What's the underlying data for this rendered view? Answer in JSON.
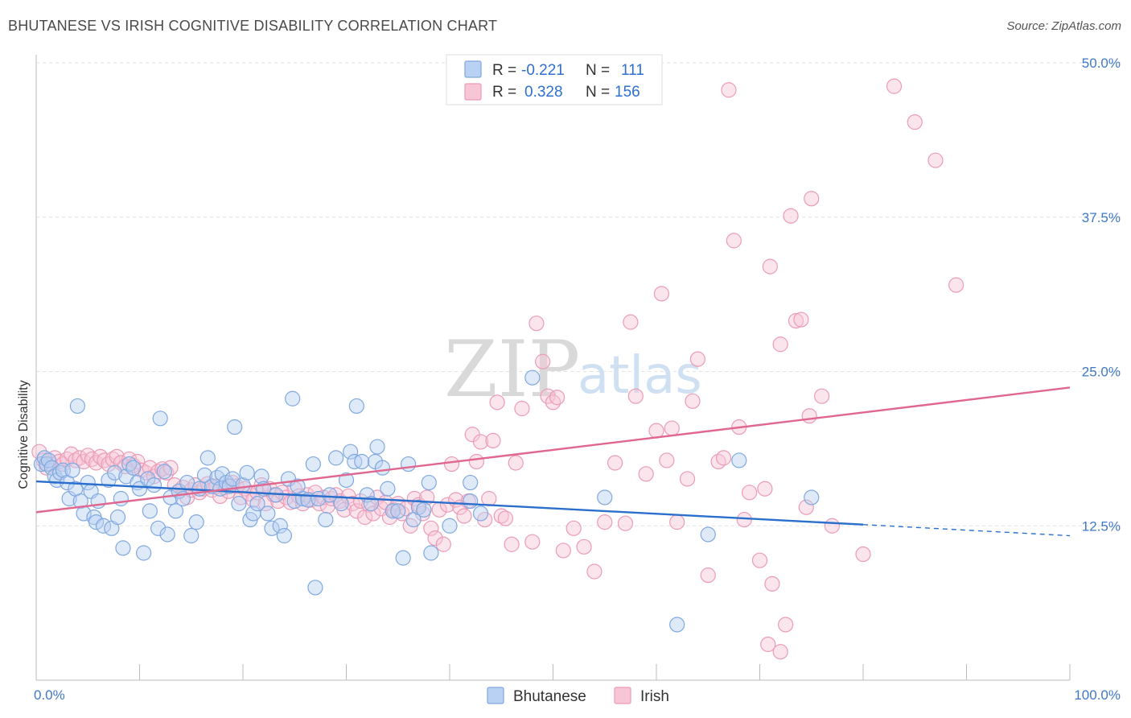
{
  "title": "BHUTANESE VS IRISH COGNITIVE DISABILITY CORRELATION CHART",
  "source": "Source: ZipAtlas.com",
  "watermark": {
    "zip": "ZIP",
    "atlas": "atlas"
  },
  "colors": {
    "bhutanese": "#7fa8e0",
    "bhutanese_fill": "#b9d1f2",
    "bhutanese_line": "#2a6fcc",
    "irish": "#eb9bb5",
    "irish_fill": "#f7c6d6",
    "irish_line": "#e0678f"
  },
  "legend": {
    "rows": [
      {
        "r_label": "R =",
        "r_value": "-0.221",
        "n_label": "N =",
        "n_value": "111"
      },
      {
        "r_label": "R =",
        "r_value": "0.328",
        "n_label": "N =",
        "n_value": "156"
      }
    ]
  },
  "bottom_legend": [
    "Bhutanese",
    "Irish"
  ],
  "chart_data": {
    "type": "scatter",
    "ylabel": "Cognitive Disability",
    "xlim": [
      0,
      100
    ],
    "ylim": [
      0,
      50
    ],
    "x_tick_labels": [
      "0.0%",
      "100.0%"
    ],
    "y_ticks": [
      12.5,
      25.0,
      37.5,
      50.0
    ],
    "y_tick_labels": [
      "12.5%",
      "25.0%",
      "37.5%",
      "50.0%"
    ],
    "grid": true,
    "series": [
      {
        "name": "Bhutanese",
        "trend": {
          "x": [
            0,
            80
          ],
          "y": [
            16.1,
            12.6
          ],
          "dashed_to": [
            100,
            11.7
          ]
        },
        "points": [
          [
            0.5,
            17.5
          ],
          [
            0.8,
            18
          ],
          [
            1,
            17.5
          ],
          [
            1.2,
            17.8
          ],
          [
            1.5,
            17.2
          ],
          [
            1.8,
            16.5
          ],
          [
            2,
            16.2
          ],
          [
            2.3,
            16.8
          ],
          [
            2.6,
            17
          ],
          [
            3,
            16
          ],
          [
            3.2,
            14.7
          ],
          [
            3.5,
            17
          ],
          [
            3.8,
            15.5
          ],
          [
            4,
            22.2
          ],
          [
            4.3,
            14.5
          ],
          [
            4.6,
            13.5
          ],
          [
            5,
            16
          ],
          [
            5.3,
            15.3
          ],
          [
            5.6,
            13.2
          ],
          [
            5.8,
            12.8
          ],
          [
            6,
            14.5
          ],
          [
            6.5,
            12.5
          ],
          [
            7,
            16.2
          ],
          [
            7.3,
            12.3
          ],
          [
            7.6,
            16.8
          ],
          [
            7.9,
            13.2
          ],
          [
            8.2,
            14.7
          ],
          [
            8.4,
            10.7
          ],
          [
            8.7,
            16.5
          ],
          [
            9,
            17.5
          ],
          [
            9.4,
            17.2
          ],
          [
            9.8,
            16
          ],
          [
            10,
            15.5
          ],
          [
            10.4,
            10.3
          ],
          [
            10.8,
            16.3
          ],
          [
            11,
            13.7
          ],
          [
            11.4,
            15.8
          ],
          [
            11.8,
            12.3
          ],
          [
            12,
            21.2
          ],
          [
            12.4,
            16.9
          ],
          [
            12.7,
            11.8
          ],
          [
            13,
            14.8
          ],
          [
            13.5,
            13.7
          ],
          [
            13.8,
            15.3
          ],
          [
            14.2,
            14.7
          ],
          [
            14.6,
            16
          ],
          [
            15,
            11.7
          ],
          [
            15.5,
            12.8
          ],
          [
            15.8,
            15.5
          ],
          [
            16.3,
            16.6
          ],
          [
            16.6,
            18
          ],
          [
            17,
            15.7
          ],
          [
            17.5,
            16.4
          ],
          [
            17.8,
            15.5
          ],
          [
            18,
            16.7
          ],
          [
            18.4,
            16
          ],
          [
            18.7,
            15.7
          ],
          [
            19,
            16.3
          ],
          [
            19.2,
            20.5
          ],
          [
            19.6,
            14.3
          ],
          [
            20,
            15.8
          ],
          [
            20.4,
            16.8
          ],
          [
            20.7,
            13
          ],
          [
            21,
            13.5
          ],
          [
            21.4,
            14.3
          ],
          [
            21.8,
            16.5
          ],
          [
            22,
            15.5
          ],
          [
            22.4,
            13.5
          ],
          [
            22.8,
            12.3
          ],
          [
            23.2,
            15
          ],
          [
            23.6,
            12.5
          ],
          [
            24,
            11.7
          ],
          [
            24.4,
            16.3
          ],
          [
            24.8,
            22.8
          ],
          [
            25,
            14.5
          ],
          [
            25.3,
            15.7
          ],
          [
            25.8,
            14.7
          ],
          [
            26.3,
            14.6
          ],
          [
            26.8,
            17.5
          ],
          [
            27,
            7.5
          ],
          [
            27.3,
            14.7
          ],
          [
            28,
            13
          ],
          [
            28.4,
            15
          ],
          [
            29,
            18
          ],
          [
            29.5,
            14.3
          ],
          [
            30,
            16.2
          ],
          [
            30.4,
            18.5
          ],
          [
            30.8,
            17.7
          ],
          [
            31,
            22.2
          ],
          [
            31.5,
            17.7
          ],
          [
            32,
            15
          ],
          [
            32.4,
            14.3
          ],
          [
            32.8,
            17.7
          ],
          [
            33,
            18.9
          ],
          [
            33.5,
            17.2
          ],
          [
            34,
            15.5
          ],
          [
            34.5,
            13.7
          ],
          [
            35,
            13.7
          ],
          [
            35.5,
            9.9
          ],
          [
            36,
            17.5
          ],
          [
            36.5,
            13
          ],
          [
            37,
            14
          ],
          [
            37.5,
            13.8
          ],
          [
            38,
            16
          ],
          [
            38.2,
            10.3
          ],
          [
            40,
            12.5
          ],
          [
            42,
            16
          ],
          [
            42,
            14.5
          ],
          [
            43,
            13.5
          ],
          [
            48,
            24.5
          ],
          [
            55,
            14.8
          ],
          [
            62,
            4.5
          ],
          [
            65,
            11.8
          ],
          [
            68,
            17.8
          ],
          [
            75,
            14.8
          ]
        ]
      },
      {
        "name": "Irish",
        "trend": {
          "x": [
            0,
            100
          ],
          "y": [
            13.6,
            23.7
          ]
        },
        "points": [
          [
            0.3,
            18.5
          ],
          [
            0.7,
            17.8
          ],
          [
            1,
            17.2
          ],
          [
            1.4,
            17.5
          ],
          [
            1.8,
            18
          ],
          [
            2.2,
            17.7
          ],
          [
            2.6,
            17.5
          ],
          [
            3,
            17.9
          ],
          [
            3.4,
            18.3
          ],
          [
            3.8,
            17.8
          ],
          [
            4.2,
            18
          ],
          [
            4.6,
            17.7
          ],
          [
            5,
            18.2
          ],
          [
            5.4,
            17.9
          ],
          [
            5.8,
            17.6
          ],
          [
            6.2,
            18.1
          ],
          [
            6.6,
            17.8
          ],
          [
            7,
            17.5
          ],
          [
            7.4,
            17.9
          ],
          [
            7.8,
            18.1
          ],
          [
            8.2,
            17.6
          ],
          [
            8.6,
            17.3
          ],
          [
            9,
            17.9
          ],
          [
            9.4,
            17.4
          ],
          [
            9.8,
            17.7
          ],
          [
            10.2,
            17
          ],
          [
            10.6,
            16.8
          ],
          [
            11,
            17.2
          ],
          [
            11.4,
            16.5
          ],
          [
            11.8,
            16.9
          ],
          [
            12.2,
            17.1
          ],
          [
            12.6,
            16.8
          ],
          [
            13,
            17.2
          ],
          [
            13.4,
            15.8
          ],
          [
            13.8,
            15.3
          ],
          [
            14.2,
            15.6
          ],
          [
            14.6,
            14.8
          ],
          [
            15,
            15.4
          ],
          [
            15.4,
            15.8
          ],
          [
            15.8,
            15.2
          ],
          [
            16.2,
            15.5
          ],
          [
            16.6,
            15.9
          ],
          [
            17,
            15.4
          ],
          [
            17.4,
            15.7
          ],
          [
            17.8,
            14.9
          ],
          [
            18.2,
            15.6
          ],
          [
            18.6,
            15.3
          ],
          [
            19,
            16
          ],
          [
            19.4,
            15.7
          ],
          [
            19.8,
            14.8
          ],
          [
            20.2,
            15.5
          ],
          [
            20.6,
            15.1
          ],
          [
            21,
            14.6
          ],
          [
            21.4,
            15.2
          ],
          [
            21.8,
            15.8
          ],
          [
            22.2,
            14.3
          ],
          [
            22.6,
            15.5
          ],
          [
            23,
            15
          ],
          [
            23.4,
            14.5
          ],
          [
            23.8,
            15.2
          ],
          [
            24.2,
            14.8
          ],
          [
            24.6,
            14.4
          ],
          [
            25,
            15.5
          ],
          [
            25.4,
            14.9
          ],
          [
            25.8,
            14.3
          ],
          [
            26.2,
            15
          ],
          [
            26.6,
            14.6
          ],
          [
            27,
            15.2
          ],
          [
            27.4,
            14.3
          ],
          [
            27.8,
            14.8
          ],
          [
            28.2,
            14.1
          ],
          [
            28.6,
            14.7
          ],
          [
            29,
            15
          ],
          [
            29.4,
            14.5
          ],
          [
            29.8,
            13.8
          ],
          [
            30.2,
            14.9
          ],
          [
            30.6,
            14.3
          ],
          [
            31,
            13.7
          ],
          [
            31.4,
            14.5
          ],
          [
            31.8,
            13.2
          ],
          [
            32.2,
            14.2
          ],
          [
            32.6,
            13.5
          ],
          [
            33,
            14.8
          ],
          [
            33.4,
            13.9
          ],
          [
            33.8,
            14.4
          ],
          [
            34.2,
            13.2
          ],
          [
            34.6,
            13.8
          ],
          [
            35,
            14.3
          ],
          [
            35.4,
            13.5
          ],
          [
            35.8,
            13.9
          ],
          [
            36.2,
            12.5
          ],
          [
            36.6,
            14.7
          ],
          [
            37,
            14.2
          ],
          [
            37.4,
            13.5
          ],
          [
            37.8,
            14.8
          ],
          [
            38.2,
            12.3
          ],
          [
            38.6,
            11.5
          ],
          [
            39,
            13.8
          ],
          [
            39.4,
            11
          ],
          [
            39.8,
            14.2
          ],
          [
            40.2,
            17.5
          ],
          [
            40.6,
            14.6
          ],
          [
            41,
            14
          ],
          [
            41.4,
            13.3
          ],
          [
            41.8,
            14.5
          ],
          [
            42.2,
            19.9
          ],
          [
            42.6,
            17.7
          ],
          [
            43,
            19.3
          ],
          [
            43.4,
            13
          ],
          [
            43.8,
            14.7
          ],
          [
            44.2,
            19.4
          ],
          [
            44.6,
            22.5
          ],
          [
            45,
            13.3
          ],
          [
            45.4,
            13.1
          ],
          [
            46,
            11
          ],
          [
            46.4,
            17.6
          ],
          [
            47,
            22
          ],
          [
            48,
            11.2
          ],
          [
            48.4,
            28.9
          ],
          [
            49,
            25.8
          ],
          [
            49.5,
            23
          ],
          [
            50,
            22.5
          ],
          [
            50.4,
            22.9
          ],
          [
            51,
            10.5
          ],
          [
            52,
            12.3
          ],
          [
            53,
            10.8
          ],
          [
            54,
            8.8
          ],
          [
            55,
            12.8
          ],
          [
            56,
            17.6
          ],
          [
            57,
            12.7
          ],
          [
            57.5,
            29
          ],
          [
            58,
            23
          ],
          [
            59,
            16.7
          ],
          [
            60,
            20.2
          ],
          [
            60.5,
            31.3
          ],
          [
            61,
            17.8
          ],
          [
            61.5,
            20.4
          ],
          [
            62,
            12.8
          ],
          [
            63,
            16.3
          ],
          [
            63.5,
            22.6
          ],
          [
            64,
            26
          ],
          [
            65,
            8.5
          ],
          [
            66,
            17.7
          ],
          [
            67,
            47.8
          ],
          [
            67.5,
            35.6
          ],
          [
            68,
            20.5
          ],
          [
            68.5,
            13
          ],
          [
            69,
            15.2
          ],
          [
            70,
            9.7
          ],
          [
            70.5,
            15.5
          ],
          [
            71,
            33.5
          ],
          [
            72,
            27.2
          ],
          [
            73,
            37.6
          ],
          [
            73.5,
            29.1
          ],
          [
            74.5,
            14
          ],
          [
            75,
            39
          ],
          [
            76,
            23
          ],
          [
            77,
            12.5
          ],
          [
            80,
            10.2
          ],
          [
            83,
            48.1
          ],
          [
            85,
            45.2
          ],
          [
            87,
            42.1
          ],
          [
            89,
            32
          ],
          [
            66.5,
            18
          ],
          [
            71.2,
            7.8
          ],
          [
            72.5,
            4.5
          ],
          [
            74,
            29.2
          ],
          [
            70.8,
            2.9
          ],
          [
            72,
            2.3
          ],
          [
            74.8,
            21.4
          ]
        ]
      }
    ]
  }
}
